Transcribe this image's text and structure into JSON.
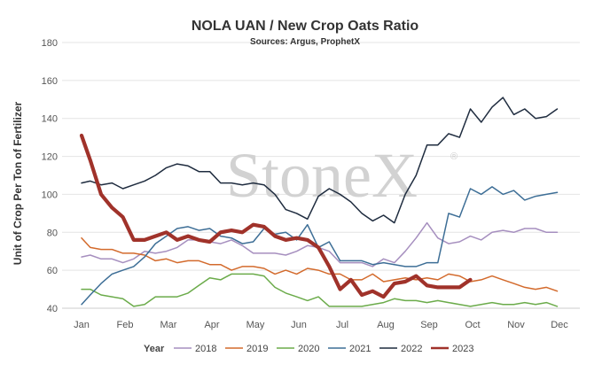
{
  "chart_data": {
    "type": "line",
    "title": "NOLA UAN / New Crop Oats Ratio",
    "subtitle": "Sources: Argus, ProphetX",
    "ylabel": "Unit of Crop Per Ton of Fertilizer",
    "xlabel": "",
    "ylim": [
      40,
      180
    ],
    "yticks": [
      40,
      60,
      80,
      100,
      120,
      140,
      160,
      180
    ],
    "xlim": [
      0,
      12
    ],
    "x_tick_labels": [
      "Jan",
      "Feb",
      "Mar",
      "Apr",
      "May",
      "Jun",
      "Jul",
      "Aug",
      "Sep",
      "Oct",
      "Nov",
      "Dec"
    ],
    "grid": "horizontal",
    "legend": {
      "title": "Year",
      "placement": "bottom"
    },
    "watermark": "StoneX",
    "watermark_mark": "®",
    "series": [
      {
        "name": "2018",
        "color": "#a68fbf",
        "width": 1.5,
        "x": [
          0.0,
          0.2,
          0.45,
          0.7,
          0.95,
          1.2,
          1.45,
          1.7,
          1.95,
          2.2,
          2.45,
          2.7,
          2.95,
          3.2,
          3.45,
          3.7,
          3.95,
          4.2,
          4.45,
          4.7,
          4.95,
          5.2,
          5.45,
          5.7,
          5.95,
          6.2,
          6.45,
          6.7,
          6.95,
          7.2,
          7.45,
          7.7,
          7.95,
          8.2,
          8.45,
          8.7,
          8.95,
          9.2,
          9.45,
          9.7,
          9.95,
          10.2,
          10.45,
          10.7,
          10.95
        ],
        "y": [
          67,
          68,
          66,
          66,
          64,
          66,
          70,
          69,
          70,
          72,
          76,
          76,
          75,
          74,
          76,
          73,
          69,
          69,
          69,
          68,
          70,
          73,
          72,
          70,
          64,
          64,
          64,
          62,
          66,
          64,
          70,
          77,
          85,
          77,
          74,
          75,
          78,
          76,
          80,
          81,
          80,
          82,
          82,
          80,
          80
        ]
      },
      {
        "name": "2019",
        "color": "#d36a2c",
        "width": 1.5,
        "x": [
          0.0,
          0.2,
          0.45,
          0.7,
          0.95,
          1.2,
          1.45,
          1.7,
          1.95,
          2.2,
          2.45,
          2.7,
          2.95,
          3.2,
          3.45,
          3.7,
          3.95,
          4.2,
          4.45,
          4.7,
          4.95,
          5.2,
          5.45,
          5.7,
          5.95,
          6.2,
          6.45,
          6.7,
          6.95,
          7.2,
          7.45,
          7.7,
          7.95,
          8.2,
          8.45,
          8.7,
          8.95,
          9.2,
          9.45,
          9.7,
          9.95,
          10.2,
          10.45,
          10.7,
          10.95
        ],
        "y": [
          77,
          72,
          71,
          71,
          69,
          69,
          68,
          65,
          66,
          64,
          65,
          65,
          63,
          63,
          60,
          62,
          62,
          61,
          58,
          60,
          58,
          61,
          60,
          58,
          58,
          55,
          55,
          58,
          54,
          55,
          56,
          55,
          56,
          55,
          58,
          57,
          54,
          55,
          57,
          55,
          53,
          51,
          50,
          51,
          49
        ]
      },
      {
        "name": "2020",
        "color": "#6bab4a",
        "width": 1.5,
        "x": [
          0.0,
          0.2,
          0.45,
          0.7,
          0.95,
          1.2,
          1.45,
          1.7,
          1.95,
          2.2,
          2.45,
          2.7,
          2.95,
          3.2,
          3.45,
          3.7,
          3.95,
          4.2,
          4.45,
          4.7,
          4.95,
          5.2,
          5.45,
          5.7,
          5.95,
          6.2,
          6.45,
          6.7,
          6.95,
          7.2,
          7.45,
          7.7,
          7.95,
          8.2,
          8.45,
          8.7,
          8.95,
          9.2,
          9.45,
          9.7,
          9.95,
          10.2,
          10.45,
          10.7,
          10.95
        ],
        "y": [
          50,
          50,
          47,
          46,
          45,
          41,
          42,
          46,
          46,
          46,
          48,
          52,
          56,
          55,
          58,
          58,
          58,
          57,
          51,
          48,
          46,
          44,
          46,
          41,
          41,
          41,
          41,
          42,
          43,
          45,
          44,
          44,
          43,
          44,
          43,
          42,
          41,
          42,
          43,
          42,
          42,
          43,
          42,
          43,
          41
        ]
      },
      {
        "name": "2021",
        "color": "#3d6e96",
        "width": 1.5,
        "x": [
          0.0,
          0.2,
          0.45,
          0.7,
          0.95,
          1.2,
          1.45,
          1.7,
          1.95,
          2.2,
          2.45,
          2.7,
          2.95,
          3.2,
          3.45,
          3.7,
          3.95,
          4.2,
          4.45,
          4.7,
          4.95,
          5.2,
          5.45,
          5.7,
          5.95,
          6.2,
          6.45,
          6.7,
          6.95,
          7.2,
          7.45,
          7.7,
          7.95,
          8.2,
          8.45,
          8.7,
          8.95,
          9.2,
          9.45,
          9.7,
          9.95,
          10.2,
          10.45,
          10.7,
          10.95
        ],
        "y": [
          42,
          47,
          53,
          58,
          60,
          62,
          67,
          74,
          78,
          82,
          83,
          81,
          82,
          78,
          77,
          74,
          75,
          82,
          79,
          80,
          76,
          84,
          72,
          75,
          65,
          65,
          65,
          63,
          64,
          63,
          62,
          62,
          64,
          64,
          90,
          88,
          103,
          100,
          104,
          100,
          102,
          97,
          99,
          100,
          101
        ]
      },
      {
        "name": "2022",
        "color": "#1f2c3f",
        "width": 1.5,
        "x": [
          0.0,
          0.2,
          0.45,
          0.7,
          0.95,
          1.2,
          1.45,
          1.7,
          1.95,
          2.2,
          2.45,
          2.7,
          2.95,
          3.2,
          3.45,
          3.7,
          3.95,
          4.2,
          4.45,
          4.7,
          4.95,
          5.2,
          5.45,
          5.7,
          5.95,
          6.2,
          6.45,
          6.7,
          6.95,
          7.2,
          7.45,
          7.7,
          7.95,
          8.2,
          8.45,
          8.7,
          8.95,
          9.2,
          9.45,
          9.7,
          9.95,
          10.2,
          10.45,
          10.7,
          10.95
        ],
        "y": [
          106,
          107,
          105,
          106,
          103,
          105,
          107,
          110,
          114,
          116,
          115,
          112,
          112,
          106,
          106,
          105,
          106,
          105,
          100,
          92,
          90,
          87,
          99,
          103,
          100,
          96,
          90,
          86,
          89,
          85,
          100,
          110,
          126,
          126,
          132,
          130,
          145,
          138,
          146,
          151,
          142,
          145,
          140,
          141,
          145
        ]
      },
      {
        "name": "2023",
        "color": "#a0322a",
        "width": 4.2,
        "x": [
          0.0,
          0.2,
          0.45,
          0.7,
          0.95,
          1.2,
          1.45,
          1.7,
          1.95,
          2.2,
          2.45,
          2.7,
          2.95,
          3.2,
          3.45,
          3.7,
          3.95,
          4.2,
          4.45,
          4.7,
          4.95,
          5.2,
          5.45,
          5.7,
          5.95,
          6.2,
          6.45,
          6.7,
          6.95,
          7.2,
          7.45,
          7.7,
          7.95,
          8.2,
          8.45,
          8.7,
          8.95
        ],
        "y": [
          131,
          118,
          100,
          93,
          88,
          76,
          76,
          78,
          80,
          76,
          78,
          76,
          75,
          80,
          81,
          80,
          84,
          83,
          78,
          76,
          77,
          76,
          72,
          62,
          50,
          55,
          47,
          49,
          46,
          53,
          54,
          57,
          52,
          51,
          51,
          51,
          55
        ]
      }
    ]
  }
}
